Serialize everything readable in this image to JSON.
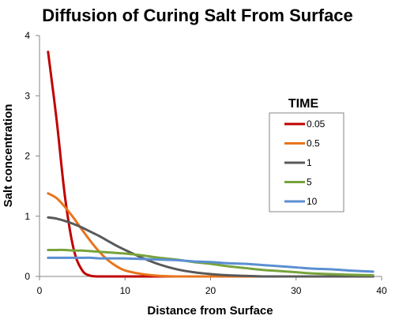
{
  "chart_data": {
    "type": "line",
    "title": "Diffusion of Curing Salt From Surface",
    "xlabel": "Distance from Surface",
    "ylabel": "Salt concentration",
    "xlim": [
      0,
      40
    ],
    "ylim": [
      0,
      4
    ],
    "xticks": [
      "0",
      "10",
      "20",
      "30",
      "40"
    ],
    "yticks": [
      "0",
      "1",
      "2",
      "3",
      "4"
    ],
    "grid": false,
    "legend": {
      "title": "TIME",
      "position": "right"
    },
    "x": [
      1,
      2,
      3,
      4,
      5,
      6,
      7,
      8,
      9,
      10,
      12,
      14,
      16,
      18,
      20,
      22,
      24,
      26,
      28,
      30,
      32,
      34,
      36,
      39
    ],
    "series": [
      {
        "name": "0.05",
        "color": "#c00000",
        "values": [
          3.73,
          2.6,
          1.3,
          0.45,
          0.1,
          0.01,
          0,
          0,
          0,
          0,
          0,
          0,
          0,
          0,
          0,
          0,
          0,
          0,
          0,
          0,
          0,
          0,
          0,
          0
        ]
      },
      {
        "name": "0.5",
        "color": "#e8741c",
        "values": [
          1.38,
          1.3,
          1.15,
          0.97,
          0.77,
          0.58,
          0.41,
          0.27,
          0.17,
          0.1,
          0.04,
          0.01,
          0,
          0,
          0,
          0,
          0,
          0,
          0,
          0,
          0,
          0,
          0,
          0
        ]
      },
      {
        "name": "1",
        "color": "#595959",
        "values": [
          0.98,
          0.96,
          0.92,
          0.87,
          0.81,
          0.74,
          0.67,
          0.59,
          0.51,
          0.44,
          0.31,
          0.2,
          0.12,
          0.07,
          0.04,
          0.02,
          0.01,
          0,
          0,
          0,
          0,
          0,
          0,
          0
        ]
      },
      {
        "name": "5",
        "color": "#77a33b",
        "values": [
          0.44,
          0.44,
          0.44,
          0.43,
          0.43,
          0.42,
          0.41,
          0.4,
          0.39,
          0.38,
          0.35,
          0.31,
          0.28,
          0.24,
          0.21,
          0.17,
          0.14,
          0.11,
          0.09,
          0.07,
          0.05,
          0.04,
          0.03,
          0.02
        ]
      },
      {
        "name": "10",
        "color": "#5b8fd1",
        "values": [
          0.31,
          0.31,
          0.31,
          0.31,
          0.31,
          0.31,
          0.3,
          0.3,
          0.3,
          0.3,
          0.29,
          0.28,
          0.27,
          0.25,
          0.24,
          0.22,
          0.21,
          0.19,
          0.17,
          0.15,
          0.13,
          0.12,
          0.1,
          0.08
        ]
      }
    ]
  }
}
